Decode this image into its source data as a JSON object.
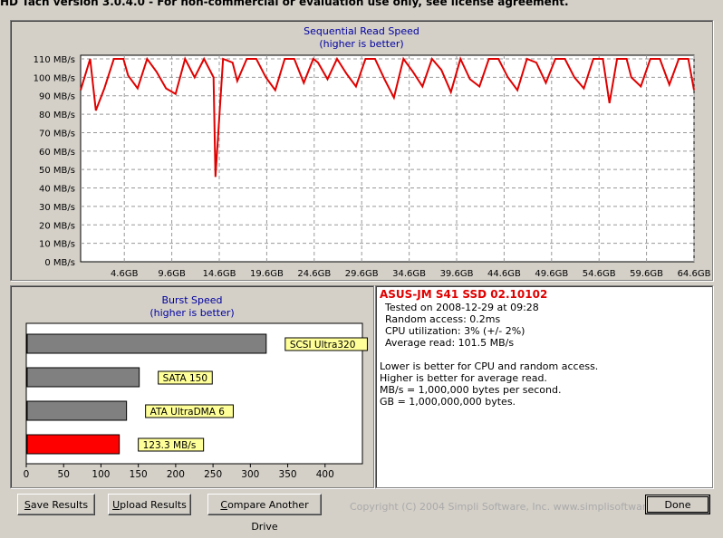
{
  "window": {
    "title": "HD Tach version 3.0.4.0  - For non-commercial or evaluation use only, see license agreement."
  },
  "seq_chart": {
    "title": "Sequential Read Speed",
    "subtitle": "(higher is better)",
    "line_color": "#e00000"
  },
  "burst_chart": {
    "title": "Burst Speed",
    "subtitle": "(higher is better)"
  },
  "chart_data": [
    {
      "type": "line",
      "title": "Sequential Read Speed",
      "subtitle": "(higher is better)",
      "y_unit": "MB/s",
      "ylim": [
        0,
        110
      ],
      "y_ticks": [
        "0 MB/s",
        "10 MB/s",
        "20 MB/s",
        "30 MB/s",
        "40 MB/s",
        "50 MB/s",
        "60 MB/s",
        "70 MB/s",
        "80 MB/s",
        "90 MB/s",
        "100 MB/s",
        "110 MB/s"
      ],
      "x_ticks": [
        "4.6GB",
        "9.6GB",
        "14.6GB",
        "19.6GB",
        "24.6GB",
        "29.6GB",
        "34.6GB",
        "39.6GB",
        "44.6GB",
        "49.6GB",
        "54.6GB",
        "59.6GB",
        "64.6GB"
      ],
      "xlim_gb": [
        0,
        64.6
      ],
      "grid": true,
      "series": [
        {
          "color": "#e00000",
          "x": [
            0,
            1.0,
            1.6,
            2.5,
            3.5,
            4.5,
            5.0,
            6.0,
            7.0,
            8.0,
            9.0,
            10.0,
            11.0,
            12.0,
            13.0,
            14.0,
            14.2,
            15.0,
            16.0,
            16.5,
            17.5,
            18.5,
            19.5,
            20.5,
            21.5,
            22.5,
            23.5,
            24.5,
            25.0,
            26.0,
            27.0,
            28.0,
            29.0,
            30.0,
            31.0,
            32.0,
            33.0,
            34.0,
            35.0,
            36.0,
            37.0,
            38.0,
            39.0,
            40.0,
            41.0,
            42.0,
            43.0,
            44.0,
            45.0,
            46.0,
            47.0,
            48.0,
            49.0,
            50.0,
            51.0,
            52.0,
            53.0,
            54.0,
            55.0,
            55.7,
            56.5,
            57.5,
            58.0,
            59.0,
            60.0,
            61.0,
            62.0,
            63.0,
            64.0,
            64.6
          ],
          "y": [
            93,
            110,
            82,
            94,
            110,
            110,
            101,
            94,
            110,
            103,
            94,
            91,
            110,
            100,
            110,
            100,
            46,
            110,
            108,
            98,
            110,
            110,
            100,
            93,
            110,
            110,
            97,
            110,
            108,
            99,
            110,
            102,
            95,
            110,
            110,
            99,
            89,
            110,
            103,
            95,
            110,
            104,
            92,
            110,
            99,
            95,
            110,
            110,
            100,
            93,
            110,
            108,
            97,
            110,
            110,
            100,
            94,
            110,
            110,
            86,
            110,
            110,
            100,
            95,
            110,
            110,
            96,
            110,
            110,
            93
          ]
        }
      ]
    },
    {
      "type": "bar",
      "title": "Burst Speed",
      "subtitle": "(higher is better)",
      "orientation": "horizontal",
      "xlim": [
        0,
        450
      ],
      "x_ticks": [
        "0",
        "50",
        "100",
        "150",
        "200",
        "250",
        "300",
        "350",
        "400"
      ],
      "grid": false,
      "categories": [
        "SCSI Ultra320",
        "SATA 150",
        "ATA UltraDMA 6",
        "123.3 MB/s"
      ],
      "values": [
        320,
        150,
        133,
        123.3
      ],
      "colors": [
        "#808080",
        "#808080",
        "#808080",
        "#ff0000"
      ]
    }
  ],
  "info": {
    "drive_name": "ASUS-JM S41 SSD 02.10102",
    "tested_on": "Tested on 2008-12-29 at 09:28",
    "random_access": "Random access: 0.2ms",
    "cpu_utilization": "CPU utilization: 3% (+/- 2%)",
    "average_read": "Average read: 101.5 MB/s",
    "note1": "Lower is better for CPU and random access.",
    "note2": "Higher is better for average read.",
    "note3": "MB/s = 1,000,000 bytes per second.",
    "note4": "GB = 1,000,000,000 bytes."
  },
  "buttons": {
    "save_first": "S",
    "save_rest": "ave Results",
    "upload_first": "U",
    "upload_rest": "pload Results",
    "compare_first": "C",
    "compare_rest": "ompare Another Drive",
    "done": "Done"
  },
  "footer": {
    "copyright": "Copyright (C) 2004 Simpli Software, Inc. www.simplisoftware.com"
  }
}
